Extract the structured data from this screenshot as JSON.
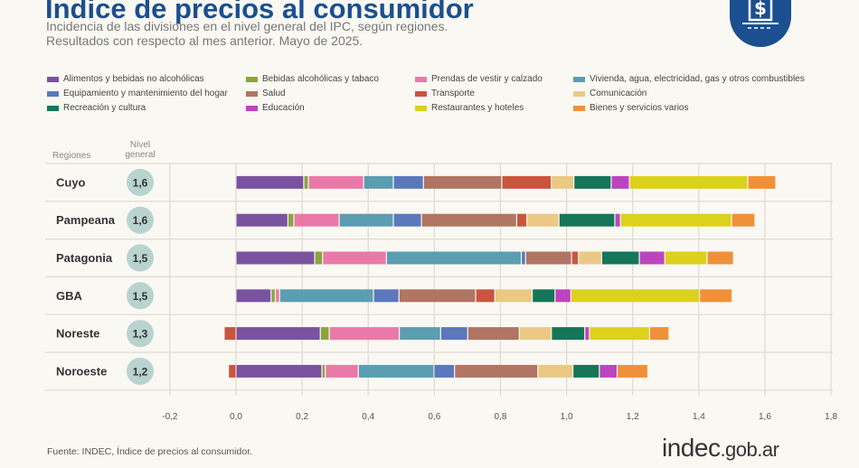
{
  "header": {
    "title": "Índice de precios al consumidor",
    "subtitle_1": "Incidencia de las divisiones en el nivel general del IPC, según regiones.",
    "subtitle_2": "Resultados con respecto al mes anterior. Mayo de 2025.",
    "logo_icon": "dollar-document-icon"
  },
  "table_headers": {
    "regions": "Regiones",
    "level_1": "Nivel",
    "level_2": "general"
  },
  "footer": {
    "source": "Fuente: INDEC, Índice de precios al consumidor.",
    "brand_main": "indec",
    "brand_domain": ".gob.ar"
  },
  "chart_data": {
    "type": "bar",
    "orientation": "horizontal",
    "stacked": true,
    "xlim": [
      -0.2,
      1.8
    ],
    "x_ticks": [
      "-0,2",
      "0,0",
      "0,2",
      "0,4",
      "0,6",
      "0,8",
      "1,0",
      "1,2",
      "1,4",
      "1,6",
      "1,8"
    ],
    "x_tick_values": [
      -0.2,
      0,
      0.2,
      0.4,
      0.6,
      0.8,
      1.0,
      1.2,
      1.4,
      1.6,
      1.8
    ],
    "grid": true,
    "legend_position": "top",
    "categories": [
      "Cuyo",
      "Pampeana",
      "Patagonia",
      "GBA",
      "Noreste",
      "Noroeste"
    ],
    "general_level": [
      "1,6",
      "1,6",
      "1,5",
      "1,5",
      "1,3",
      "1,2"
    ],
    "series": [
      {
        "name": "Alimentos y bebidas no alcohólicas",
        "color": "#7b52a0",
        "values": [
          0.205,
          0.157,
          0.238,
          0.106,
          0.255,
          0.26
        ]
      },
      {
        "name": "Bebidas alcohólicas y tabaco",
        "color": "#8aa53e",
        "values": [
          0.014,
          0.018,
          0.024,
          0.013,
          0.027,
          0.01
        ]
      },
      {
        "name": "Prendas de vestir y calzado",
        "color": "#e97aa8",
        "values": [
          0.167,
          0.137,
          0.193,
          0.013,
          0.212,
          0.1
        ]
      },
      {
        "name": "Vivienda, agua, electricidad, gas y otros combustibles",
        "color": "#5b9db1",
        "values": [
          0.09,
          0.164,
          0.408,
          0.284,
          0.125,
          0.229
        ]
      },
      {
        "name": "Equipamiento y mantenimiento del hogar",
        "color": "#5b78bd",
        "values": [
          0.091,
          0.085,
          0.013,
          0.077,
          0.082,
          0.062
        ]
      },
      {
        "name": "Salud",
        "color": "#b07563",
        "values": [
          0.237,
          0.288,
          0.139,
          0.232,
          0.156,
          0.252
        ]
      },
      {
        "name": "Transporte",
        "color": "#c9553f",
        "values": [
          0.15,
          0.031,
          0.021,
          0.058,
          -0.036,
          -0.023
        ]
      },
      {
        "name": "Comunicación",
        "color": "#ebc985",
        "values": [
          0.068,
          0.097,
          0.07,
          0.113,
          0.097,
          0.106
        ]
      },
      {
        "name": "Recreación y cultura",
        "color": "#15765a",
        "values": [
          0.113,
          0.169,
          0.114,
          0.069,
          0.101,
          0.08
        ]
      },
      {
        "name": "Educación",
        "color": "#bd44c0",
        "values": [
          0.055,
          0.017,
          0.077,
          0.048,
          0.014,
          0.054
        ]
      },
      {
        "name": "Restaurantes y hoteles",
        "color": "#dcd11c",
        "values": [
          0.358,
          0.336,
          0.128,
          0.389,
          0.182,
          0.0
        ]
      },
      {
        "name": "Bienes y servicios varios",
        "color": "#f0913a",
        "values": [
          0.085,
          0.071,
          0.08,
          0.099,
          0.059,
          0.093
        ]
      }
    ]
  }
}
